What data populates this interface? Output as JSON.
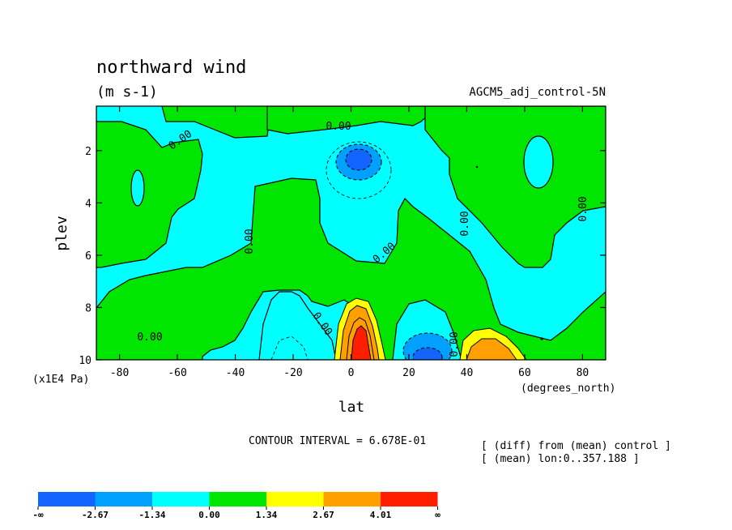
{
  "chart_data": {
    "type": "heatmap",
    "title": "northward wind",
    "units": "(m s-1)",
    "dataset_label": "AGCM5_adj_control-5N",
    "xlabel": "lat",
    "ylabel": "plev",
    "x_units": "(degrees_north)",
    "y_units": "(x1E4 Pa)",
    "x_ticks": [
      "-80",
      "-60",
      "-40",
      "-20",
      "0",
      "20",
      "40",
      "60",
      "80"
    ],
    "x_tick_values": [
      -80,
      -60,
      -40,
      -20,
      0,
      20,
      40,
      60,
      80
    ],
    "y_ticks": [
      "2",
      "4",
      "6",
      "8",
      "10"
    ],
    "y_tick_values": [
      2,
      4,
      6,
      8,
      10
    ],
    "xlim": [
      -88,
      88
    ],
    "ylim": [
      10,
      0.3
    ],
    "contour_interval_text": "CONTOUR INTERVAL = 6.678E-01",
    "contour_labels": [
      "0.00",
      "0.00",
      "0.00",
      "0.00",
      "0.00",
      "0.00",
      "0.00",
      "0.00",
      "0.00"
    ],
    "info_lines": [
      "[ (diff) from (mean) control ]",
      "[ (mean) lon:0..357.188 ]"
    ],
    "colorbar": {
      "labels": [
        "-∞",
        "-2.67",
        "-1.34",
        "0.00",
        "1.34",
        "2.67",
        "4.01",
        "∞"
      ],
      "colors": [
        "#1464ff",
        "#00a0ff",
        "#00ffff",
        "#00e600",
        "#ffff00",
        "#ffa000",
        "#ff1e00"
      ]
    },
    "features": [
      {
        "type": "min",
        "lat": 3,
        "plev": 2.3,
        "value": -2.67
      },
      {
        "type": "max",
        "lat": 3,
        "plev": 9.4,
        "value": 4.01
      },
      {
        "type": "min",
        "lat": 27,
        "plev": 9.7,
        "value": -2.67
      },
      {
        "type": "max",
        "lat": 47,
        "plev": 9.8,
        "value": 2.67
      }
    ]
  }
}
